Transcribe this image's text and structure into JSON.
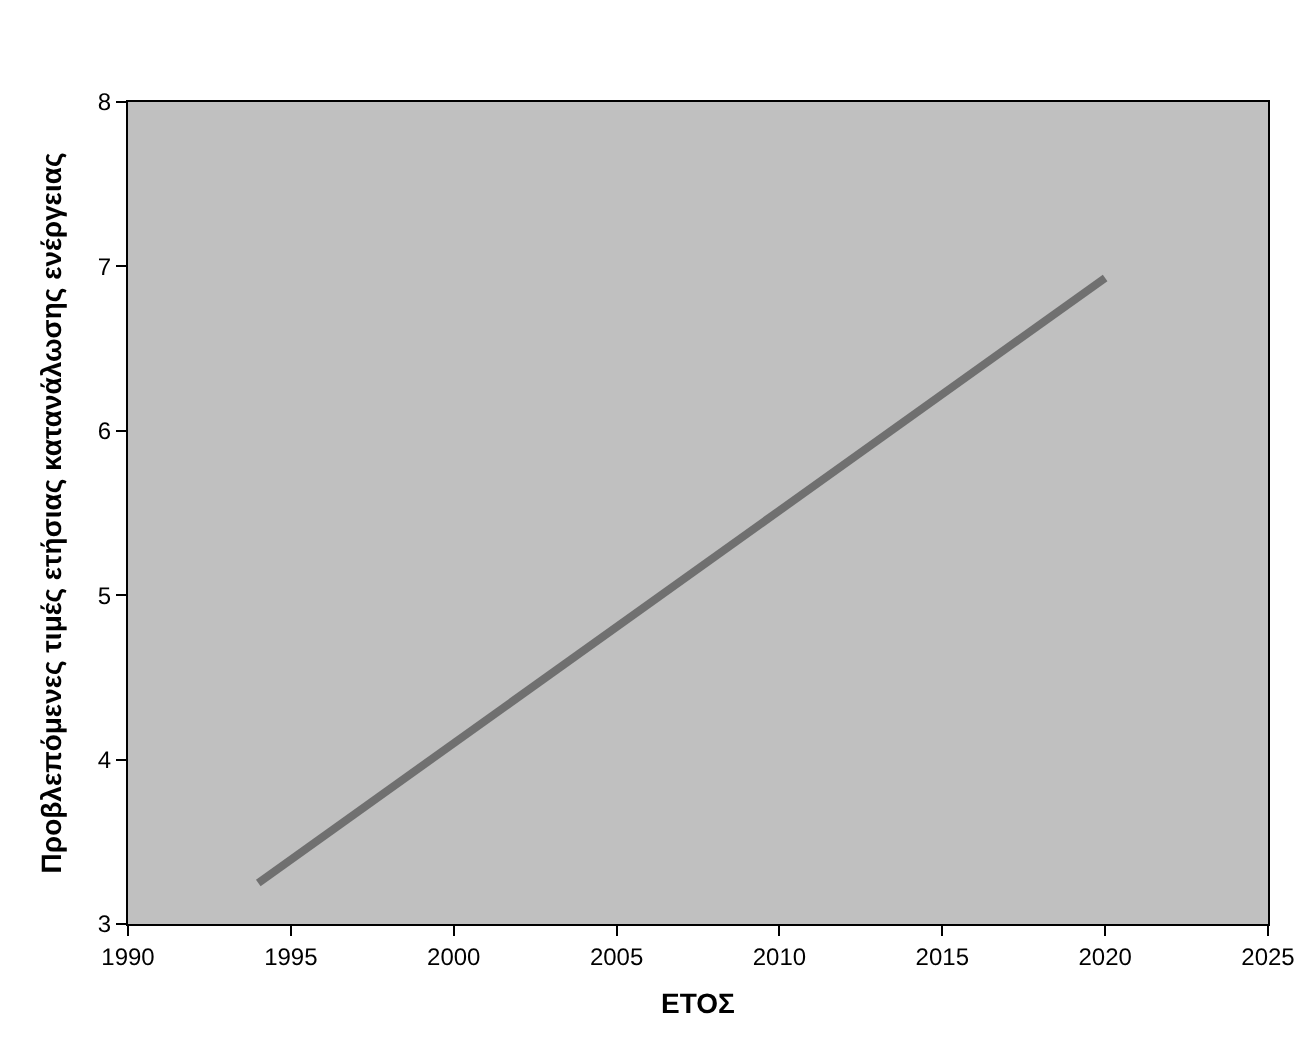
{
  "chart_data": {
    "type": "line",
    "xlabel": "ΕΤΟΣ",
    "ylabel": "Προβλεπόμενες τιμές ετήσιας κατανάλωσης ενέργειας",
    "x": [
      1994,
      2020
    ],
    "series": [
      {
        "color": "#707070",
        "values": [
          3.25,
          6.93
        ]
      }
    ],
    "xlim": [
      1990,
      2025
    ],
    "xticks": [
      1990,
      1995,
      2000,
      2005,
      2010,
      2015,
      2020,
      2025
    ],
    "ylim": [
      3,
      8
    ],
    "yticks": [
      3,
      4,
      5,
      6,
      7,
      8
    ],
    "grid": false,
    "marker": "none",
    "line_style": "solid"
  }
}
